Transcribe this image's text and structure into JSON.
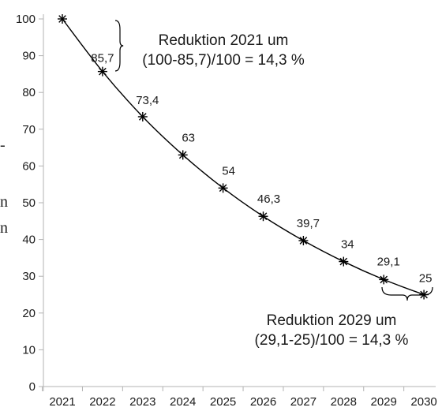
{
  "chart_data": {
    "type": "line",
    "x": [
      "2021",
      "2022",
      "2023",
      "2024",
      "2025",
      "2026",
      "2027",
      "2028",
      "2029",
      "2030"
    ],
    "series": [
      {
        "values": [
          100,
          85.7,
          73.4,
          63,
          54,
          46.3,
          39.7,
          34,
          29.1,
          25
        ],
        "data_labels": [
          "",
          "85,7",
          "73,4",
          "63",
          "54",
          "46,3",
          "39,7",
          "34",
          "29,1",
          "25"
        ],
        "marker": "asterisk",
        "color": "#000000"
      }
    ],
    "yticks": [
      0,
      10,
      20,
      30,
      40,
      50,
      60,
      70,
      80,
      90,
      100
    ],
    "ylim": [
      0,
      100
    ],
    "grid": false,
    "annotations": [
      {
        "lines": [
          "Reduktion 2021 um",
          "(100-85,7)/100 = 14,3 %"
        ],
        "brace_between": [
          "2021",
          "2022"
        ]
      },
      {
        "lines": [
          "Reduktion 2029 um",
          "(29,1-25)/100 = 14,3 %"
        ],
        "brace_between": [
          "2029",
          "2030"
        ]
      }
    ]
  },
  "left_edge_fragments": [
    "-",
    "n",
    "n"
  ]
}
